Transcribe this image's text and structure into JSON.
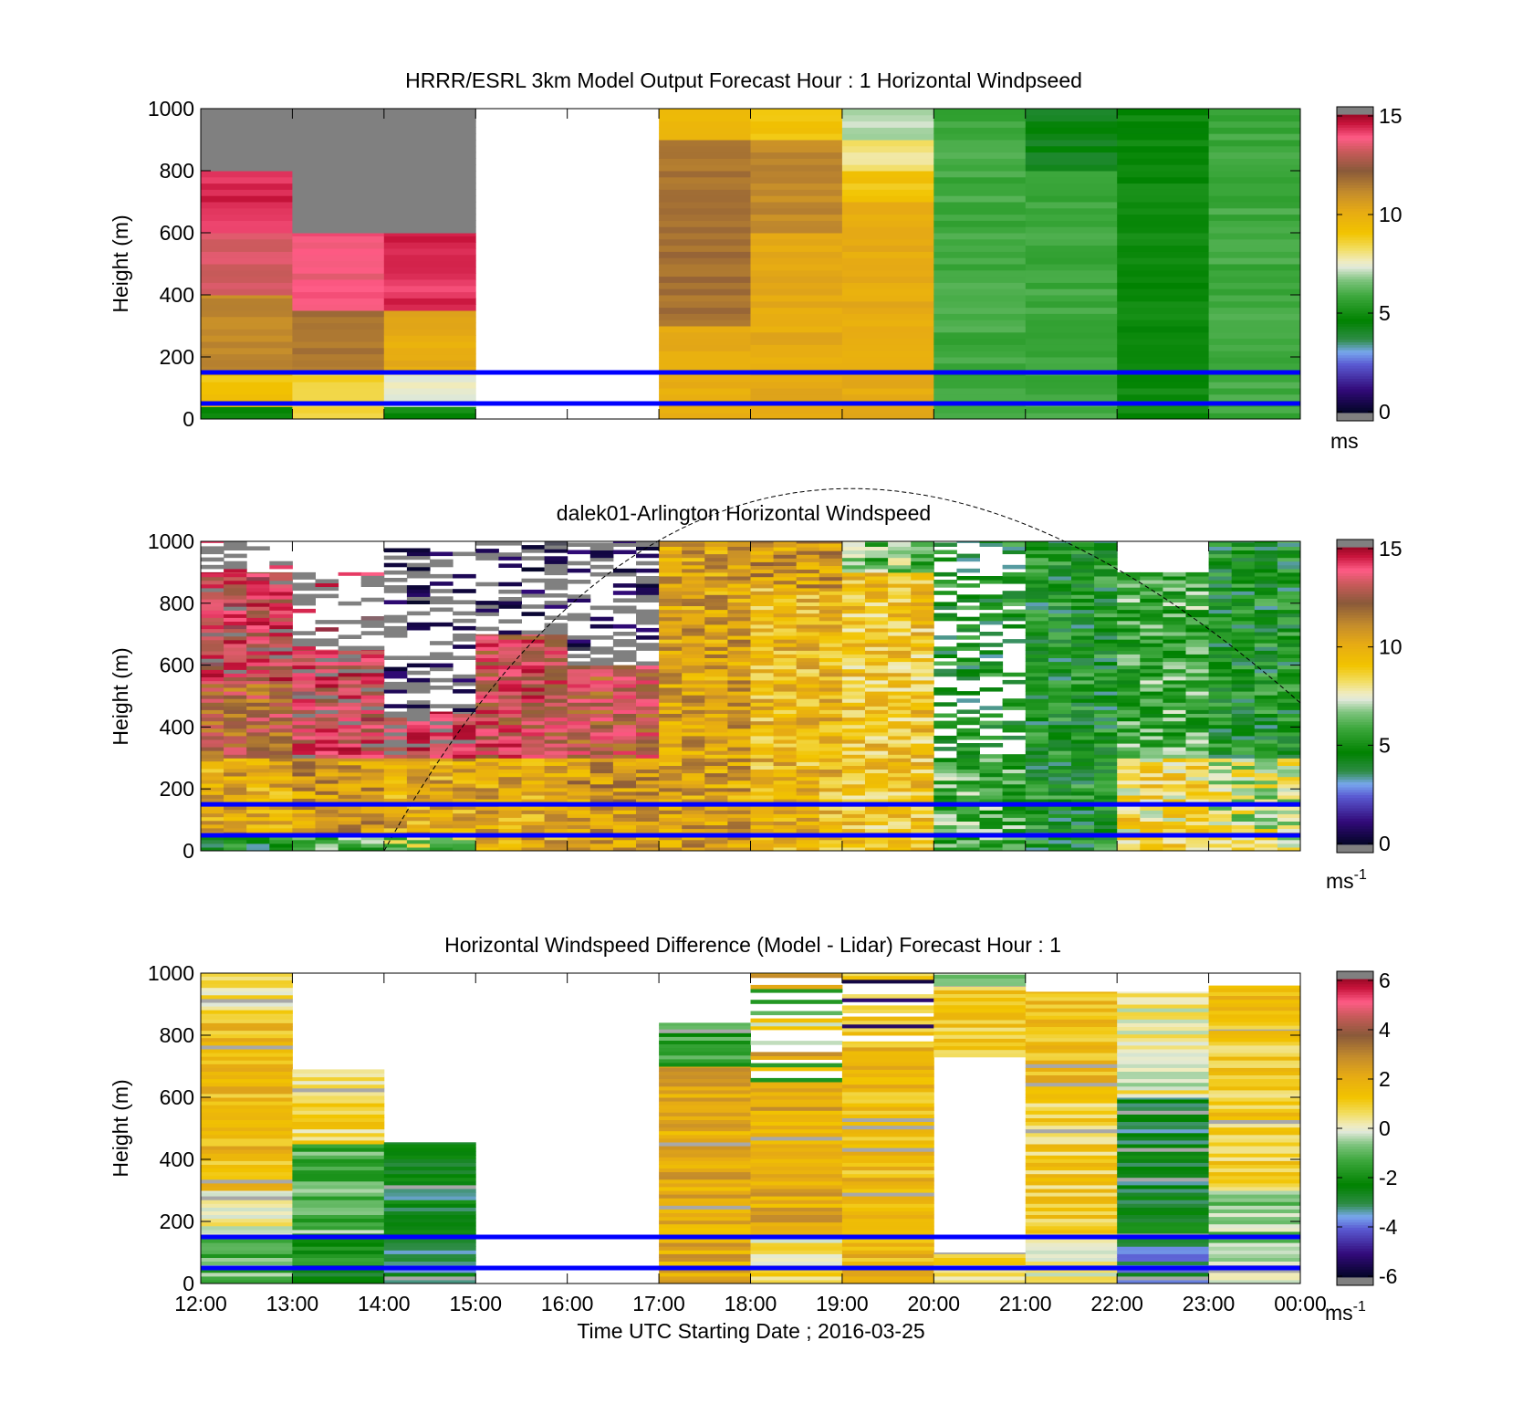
{
  "figure": {
    "x_tick_labels": [
      "12:00",
      "13:00",
      "14:00",
      "15:00",
      "16:00",
      "17:00",
      "18:00",
      "19:00",
      "20:00",
      "21:00",
      "22:00",
      "23:00",
      "00:00"
    ],
    "xlabel": "Time UTC  Starting Date ; 2016-03-25"
  },
  "chart_data": [
    {
      "type": "heatmap",
      "title": "HRRR/ESRL 3km Model Output   Forecast Hour : 1 Horizontal Windpseed",
      "xlabel": "",
      "ylabel": "Height (m)",
      "x_range": [
        "12:00",
        "00:00"
      ],
      "ylim": [
        0,
        1000
      ],
      "y_ticks": [
        "0",
        "200",
        "400",
        "600",
        "800",
        "1000"
      ],
      "colorbar": {
        "ticks": [
          "0",
          "5",
          "10",
          "15"
        ],
        "min": 0,
        "max": 15,
        "unit_label": "ms",
        "unit_superscript": ""
      },
      "reference_lines_height_m": [
        50,
        150
      ],
      "data_points": [
        {
          "time_utc": "12:00-13:00",
          "windspeed_by_height": "0-40 m: 5; 40-150 m: 9; 150-400 m: 11; 400-600 m: 13; 600-800 m: 14; 800-1000 m: >15 (grey)"
        },
        {
          "time_utc": "13:00-14:00",
          "windspeed_by_height": "0-150 m: 8.5; 150-350 m: 11.5; 350-600 m: 13.5; 600-1000 m: >15 (grey)"
        },
        {
          "time_utc": "14:00-15:00",
          "windspeed_by_height": "0-40 m: 5; 40-150 m: 7.5; 150-350 m: 10; 350-600 m: 14; 600-1000 m: >15 (grey)"
        },
        {
          "time_utc": "15:00-17:00",
          "windspeed_by_height": "no data"
        },
        {
          "time_utc": "17:00-18:00",
          "windspeed_by_height": "0-300 m: 10; 300-900 m: 11.5; 900-1000 m: 9.5"
        },
        {
          "time_utc": "18:00-19:00",
          "windspeed_by_height": "0-600 m: 10; 600-900 m: 11; 900-1000 m: 9"
        },
        {
          "time_utc": "19:00-20:00",
          "windspeed_by_height": "0-700 m: 10; 700-800 m: 9; 800-900 m: 8; 900-1000 m: 7"
        },
        {
          "time_utc": "20:00-21:00",
          "windspeed_by_height": "0-1000 m: 5.5-6.5"
        },
        {
          "time_utc": "21:00-22:00",
          "windspeed_by_height": "0-800 m: 6; 800-1000 m: 4.5"
        },
        {
          "time_utc": "22:00-23:00",
          "windspeed_by_height": "0-1000 m: 5"
        },
        {
          "time_utc": "23:00-00:00",
          "windspeed_by_height": "0-1000 m: 6"
        }
      ]
    },
    {
      "type": "heatmap",
      "title": "dalek01-Arlington  Horizontal Windspeed",
      "xlabel": "",
      "ylabel": "Height (m)",
      "x_range": [
        "12:00",
        "00:00"
      ],
      "ylim": [
        0,
        1000
      ],
      "y_ticks": [
        "0",
        "200",
        "400",
        "600",
        "800",
        "1000"
      ],
      "colorbar": {
        "ticks": [
          "0",
          "5",
          "10",
          "15"
        ],
        "min": 0,
        "max": 15,
        "unit_label": "ms",
        "unit_superscript": "-1"
      },
      "reference_lines_height_m": [
        50,
        150
      ],
      "data_points": [
        {
          "time_utc": "12:00-13:00",
          "windspeed_by_height": "0-50 m: 5; 50-300 m: 10; 300-550 m: 12; 550-900 m: 13.5; above 900 m: sparse, >15 (grey)"
        },
        {
          "time_utc": "13:00-14:00",
          "windspeed_by_height": "0-50 m: 6; 50-300 m: 10.5; 300-650 m: 13.5; 650-900 m: sparse, >15 (grey)"
        },
        {
          "time_utc": "14:00-15:00",
          "windspeed_by_height": "0-50 m: 7; 50-300 m: 10; 300-450 m: 14; above 450 m: sparse"
        },
        {
          "time_utc": "15:00-16:00",
          "windspeed_by_height": "0-300 m: 10; 300-700 m: 13; above 700 m: sparse"
        },
        {
          "time_utc": "16:00-17:00",
          "windspeed_by_height": "0-300 m: 10.5; 300-600 m: 12.5; above 600 m: sparse"
        },
        {
          "time_utc": "17:00-18:00",
          "windspeed_by_height": "0-1000 m: 9.5-11"
        },
        {
          "time_utc": "18:00-19:00",
          "windspeed_by_height": "0-850 m: 9.5; 850-1000 m: 10.5"
        },
        {
          "time_utc": "19:00-20:00",
          "windspeed_by_height": "0-900 m: 9; 900-1000 m: 6.5"
        },
        {
          "time_utc": "20:00-21:00",
          "windspeed_by_height": "0-300 m: 6; 300-1000 m: 5, sparse"
        },
        {
          "time_utc": "21:00-22:00",
          "windspeed_by_height": "0-1000 m: 5"
        },
        {
          "time_utc": "22:00-23:00",
          "windspeed_by_height": "0-300 m: 8.5; 300-900 m: 6"
        },
        {
          "time_utc": "23:00-00:00",
          "windspeed_by_height": "0-300 m: 7.5; 300-1000 m: 5"
        }
      ]
    },
    {
      "type": "heatmap",
      "title": "Horizontal Windspeed Difference (Model - Lidar) Forecast Hour : 1",
      "xlabel": "Time UTC  Starting Date ; 2016-03-25",
      "ylabel": "Height (m)",
      "x_range": [
        "12:00",
        "00:00"
      ],
      "ylim": [
        0,
        1000
      ],
      "y_ticks": [
        "0",
        "200",
        "400",
        "600",
        "800",
        "1000"
      ],
      "colorbar": {
        "ticks": [
          "-6",
          "-4",
          "-2",
          "0",
          "2",
          "4",
          "6"
        ],
        "min": -6,
        "max": 6,
        "unit_label": "ms",
        "unit_superscript": "-1"
      },
      "reference_lines_height_m": [
        50,
        150
      ],
      "data_points": [
        {
          "time_utc": "12:00-13:00",
          "difference_by_height": "0-150 m: -1; 150-300 m: 0; 300-870 m: 1.5; 870-1000 m: 0.5"
        },
        {
          "time_utc": "13:00-14:00",
          "difference_by_height": "0-150 m: -2; 150-450 m: -1; 450-690 m: 0.8"
        },
        {
          "time_utc": "14:00-15:00",
          "difference_by_height": "0-150 m: -3; 150-455 m: -2.5"
        },
        {
          "time_utc": "15:00-17:00",
          "difference_by_height": "no data"
        },
        {
          "time_utc": "17:00-18:00",
          "difference_by_height": "0-700 m: 2; 700-840 m: -1.5"
        },
        {
          "time_utc": "18:00-19:00",
          "difference_by_height": "0-150 m: 0.5; 150-650 m: 2; 650-1000 m: sparse, 2 / -1"
        },
        {
          "time_utc": "19:00-20:00",
          "difference_by_height": "0-150 m: 1.5; 150-780 m: 1.5; 800-1000 m: sparse, 1 / -5"
        },
        {
          "time_utc": "20:00-21:00",
          "difference_by_height": "0-100 m: 0.5; 730-960 m: 1; 960-1000 m: -1"
        },
        {
          "time_utc": "21:00-22:00",
          "difference_by_height": "0-150 m: 0; 150-600 m: 1; 600-940 m: 1.5"
        },
        {
          "time_utc": "22:00-23:00",
          "difference_by_height": "0-150 m: -3; 150-600 m: -2.5; 600-940 m: -1 to 1.5"
        },
        {
          "time_utc": "23:00-00:00",
          "difference_by_height": "0-300 m: -0.5; 300-820 m: 1; 820-960 m: 1.5"
        }
      ]
    }
  ]
}
